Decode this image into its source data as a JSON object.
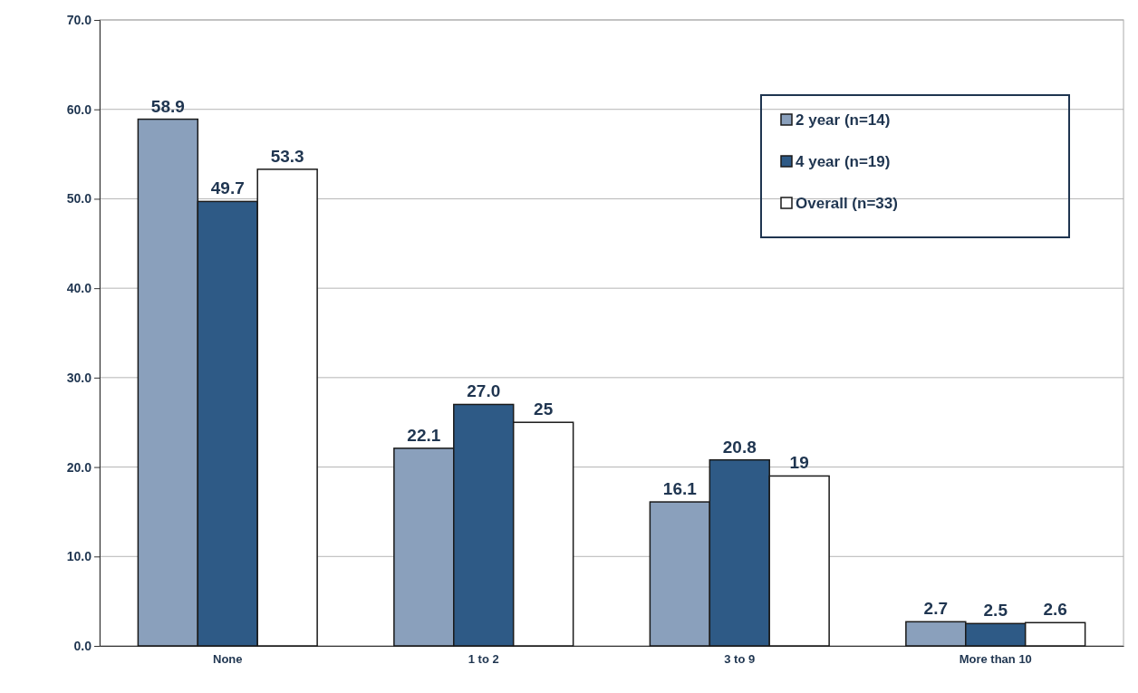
{
  "chart_data": {
    "type": "bar",
    "categories": [
      "None",
      "1 to 2",
      "3 to 9",
      "More than 10"
    ],
    "series": [
      {
        "name": "2 year (n=14)",
        "color": "#8aa0bc",
        "values": [
          58.9,
          22.1,
          16.1,
          2.7
        ],
        "value_labels": [
          "58.9",
          "22.1",
          "16.1",
          "2.7"
        ]
      },
      {
        "name": "4 year (n=19)",
        "color": "#2e5a86",
        "values": [
          49.7,
          27.0,
          20.8,
          2.5
        ],
        "value_labels": [
          "49.7",
          "27.0",
          "20.8",
          "2.5"
        ]
      },
      {
        "name": "Overall (n=33)",
        "color": "#ffffff",
        "values": [
          53.3,
          25,
          19,
          2.6
        ],
        "value_labels": [
          "53.3",
          "25",
          "19",
          "2.6"
        ]
      }
    ],
    "ylim": [
      0,
      70
    ],
    "yticks": [
      {
        "value": 0,
        "label": "0.0"
      },
      {
        "value": 10,
        "label": "10.0"
      },
      {
        "value": 20,
        "label": "20.0"
      },
      {
        "value": 30,
        "label": "30.0"
      },
      {
        "value": 40,
        "label": "40.0"
      },
      {
        "value": 50,
        "label": "50.0"
      },
      {
        "value": 60,
        "label": "60.0"
      },
      {
        "value": 70,
        "label": "70.0"
      }
    ],
    "grid": "y",
    "legend": "top right"
  }
}
